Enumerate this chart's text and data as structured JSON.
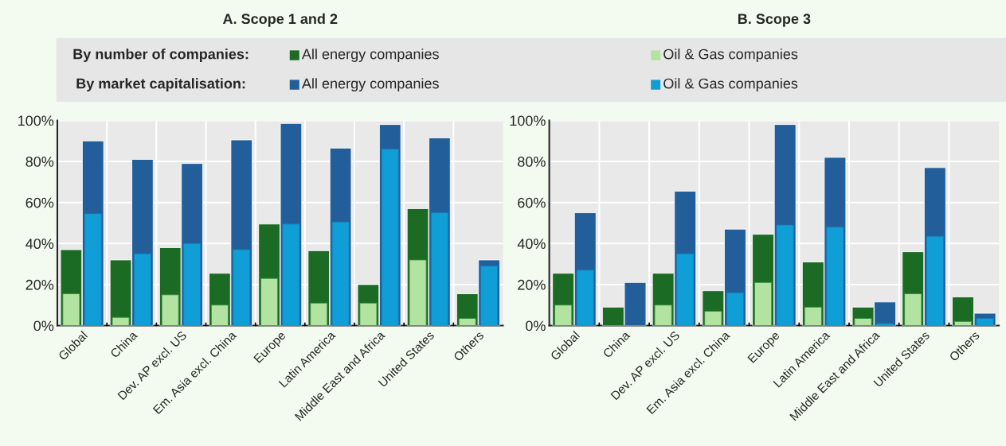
{
  "chart_data": [
    {
      "type": "bar",
      "title": "A. Scope 1 and 2",
      "categories": [
        "Global",
        "China",
        "Dev. AP excl. US",
        "Em. Asia excl. China",
        "Europe",
        "Latin America",
        "Middle East and Africa",
        "United States",
        "Others"
      ],
      "series": [
        {
          "name": "All energy companies",
          "color": "#1b6b24",
          "values": [
            37,
            32,
            38,
            25.5,
            49.5,
            36.5,
            20,
            57,
            15.5
          ]
        },
        {
          "name": "Oil & Gas companies",
          "color": "#b3e3a0",
          "values": [
            15.5,
            4,
            15,
            10,
            23,
            11,
            11,
            32,
            3.5
          ]
        },
        {
          "name": "All energy companies",
          "color": "#215e9a",
          "values": [
            90,
            81,
            79,
            90.5,
            98.5,
            86.5,
            98,
            91.5,
            32
          ]
        },
        {
          "name": "Oil & Gas companies",
          "color": "#0f9ed5",
          "values": [
            54.5,
            35,
            40,
            37,
            49.5,
            50.5,
            86,
            55,
            29
          ]
        }
      ],
      "annotations": [
        "By number of companies:",
        "By market capitalisation:"
      ],
      "ylim": [
        0,
        100
      ],
      "yticks": [
        {
          "value": 0,
          "label": "0%"
        },
        {
          "value": 20,
          "label": "20%"
        },
        {
          "value": 40,
          "label": "40%"
        },
        {
          "value": 60,
          "label": "60%"
        },
        {
          "value": 80,
          "label": "80%"
        },
        {
          "value": 100,
          "label": "100%"
        }
      ],
      "grid": true,
      "legend": "top"
    },
    {
      "type": "bar",
      "title": "B. Scope 3",
      "categories": [
        "Global",
        "China",
        "Dev. AP excl. US",
        "Em. Asia excl. China",
        "Europe",
        "Latin America",
        "Middle East and Africa",
        "United States",
        "Others"
      ],
      "series": [
        {
          "color": "#1b6b24",
          "values": [
            25.5,
            9,
            25.5,
            17,
            44.5,
            31,
            9,
            36,
            14
          ]
        },
        {
          "color": "#b3e3a0",
          "values": [
            10,
            null,
            10,
            7,
            21,
            9,
            3.5,
            15.5,
            2
          ]
        },
        {
          "color": "#215e9a",
          "values": [
            55,
            21,
            65.5,
            47,
            98,
            82,
            11.5,
            77,
            6
          ]
        },
        {
          "color": "#0f9ed5",
          "values": [
            27,
            null,
            35,
            16,
            49,
            48,
            1,
            43.5,
            3.5
          ]
        }
      ],
      "ylim": [
        0,
        100
      ],
      "yticks": [
        {
          "value": 0,
          "label": "0%"
        },
        {
          "value": 20,
          "label": "20%"
        },
        {
          "value": 40,
          "label": "40%"
        },
        {
          "value": 60,
          "label": "60%"
        },
        {
          "value": 80,
          "label": "80%"
        },
        {
          "value": 100,
          "label": "100%"
        }
      ],
      "grid": true
    }
  ]
}
